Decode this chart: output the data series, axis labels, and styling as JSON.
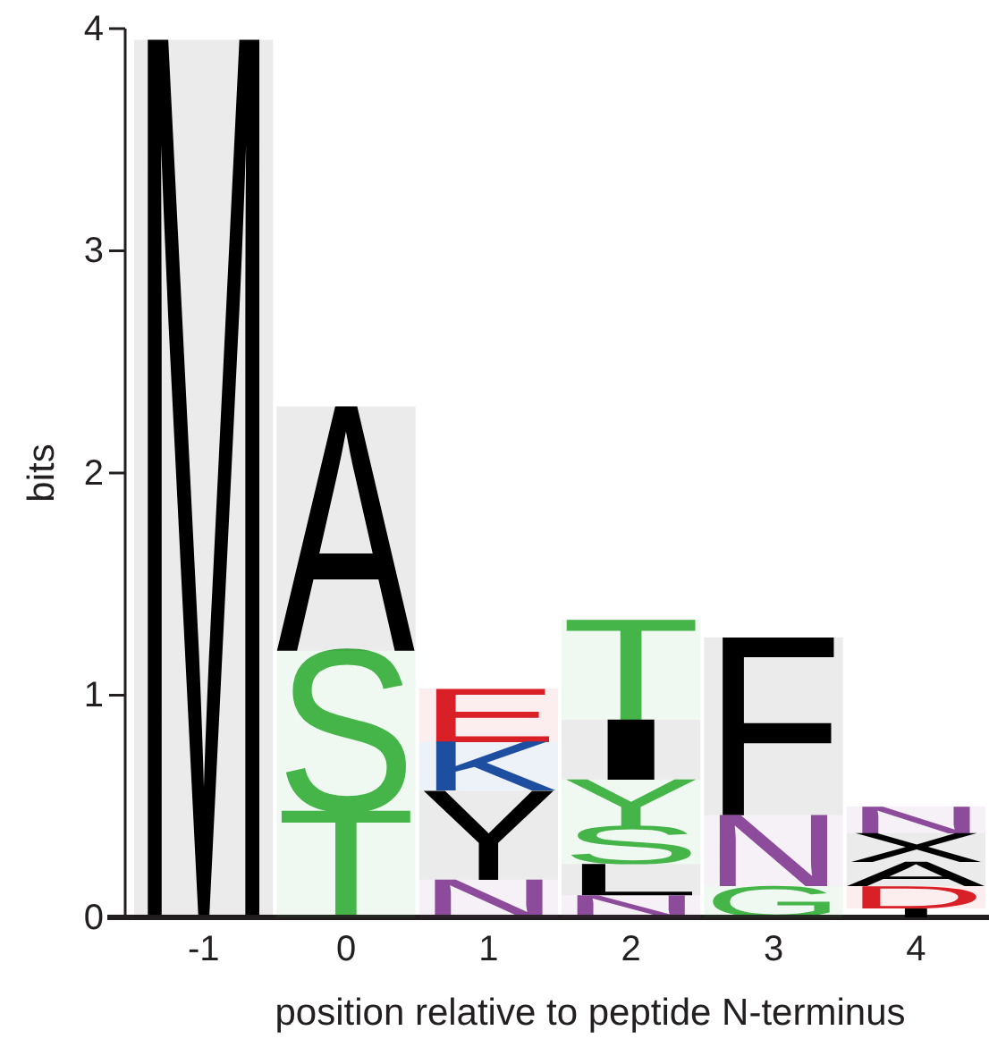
{
  "chart_data": {
    "type": "bar",
    "stacked": true,
    "xlabel": "position relative to peptide N-terminus",
    "ylabel": "bits",
    "categories": [
      "-1",
      "0",
      "1",
      "2",
      "3",
      "4"
    ],
    "ylim": [
      0,
      4
    ],
    "yticks": [
      0,
      1,
      2,
      3,
      4
    ],
    "series": [
      {
        "name": "M",
        "color": "#000000",
        "values": [
          3.95,
          null,
          null,
          null,
          null,
          null
        ]
      },
      {
        "name": "T",
        "color": "#46b649",
        "values": [
          null,
          0.48,
          null,
          null,
          null,
          null
        ]
      },
      {
        "name": "S",
        "color": "#46b649",
        "values": [
          null,
          0.72,
          null,
          null,
          null,
          null
        ]
      },
      {
        "name": "A",
        "color": "#000000",
        "values": [
          null,
          1.1,
          null,
          null,
          null,
          null
        ]
      },
      {
        "name": "N",
        "color": "#8e4c9c",
        "values": [
          null,
          null,
          0.17,
          null,
          null,
          null
        ]
      },
      {
        "name": "Y",
        "color": "#000000",
        "values": [
          null,
          null,
          0.4,
          null,
          null,
          null
        ]
      },
      {
        "name": "K",
        "color": "#1f4fa0",
        "values": [
          null,
          null,
          0.22,
          null,
          null,
          null
        ]
      },
      {
        "name": "E",
        "color": "#d82027",
        "values": [
          null,
          null,
          0.24,
          null,
          null,
          null
        ]
      },
      {
        "name": "N",
        "color": "#8e4c9c",
        "values": [
          null,
          null,
          null,
          0.1,
          null,
          null
        ]
      },
      {
        "name": "L",
        "color": "#000000",
        "values": [
          null,
          null,
          null,
          0.14,
          null,
          null
        ]
      },
      {
        "name": "S",
        "color": "#46b649",
        "values": [
          null,
          null,
          null,
          0.17,
          null,
          null
        ]
      },
      {
        "name": "Y",
        "color": "#46b649",
        "values": [
          null,
          null,
          null,
          0.21,
          null,
          null
        ]
      },
      {
        "name": "I",
        "color": "#000000",
        "values": [
          null,
          null,
          null,
          0.27,
          null,
          null
        ]
      },
      {
        "name": "T",
        "color": "#46b649",
        "values": [
          null,
          null,
          null,
          0.45,
          null,
          null
        ]
      },
      {
        "name": "G",
        "color": "#46b649",
        "values": [
          null,
          null,
          null,
          null,
          0.14,
          null
        ]
      },
      {
        "name": "N",
        "color": "#8e4c9c",
        "values": [
          null,
          null,
          null,
          null,
          0.32,
          null
        ]
      },
      {
        "name": "F",
        "color": "#000000",
        "values": [
          null,
          null,
          null,
          null,
          0.8,
          null
        ]
      },
      {
        "color": "#000000",
        "values": [
          null,
          null,
          null,
          null,
          null,
          0.04
        ]
      },
      {
        "name": "D",
        "color": "#d82027",
        "values": [
          null,
          null,
          null,
          null,
          null,
          0.1
        ]
      },
      {
        "name": "A",
        "color": "#000000",
        "values": [
          null,
          null,
          null,
          null,
          null,
          0.11
        ]
      },
      {
        "name": "X",
        "color": "#000000",
        "values": [
          null,
          null,
          null,
          null,
          null,
          0.13
        ]
      },
      {
        "name": "N",
        "color": "#8e4c9c",
        "values": [
          null,
          null,
          null,
          null,
          null,
          0.12
        ]
      }
    ]
  }
}
